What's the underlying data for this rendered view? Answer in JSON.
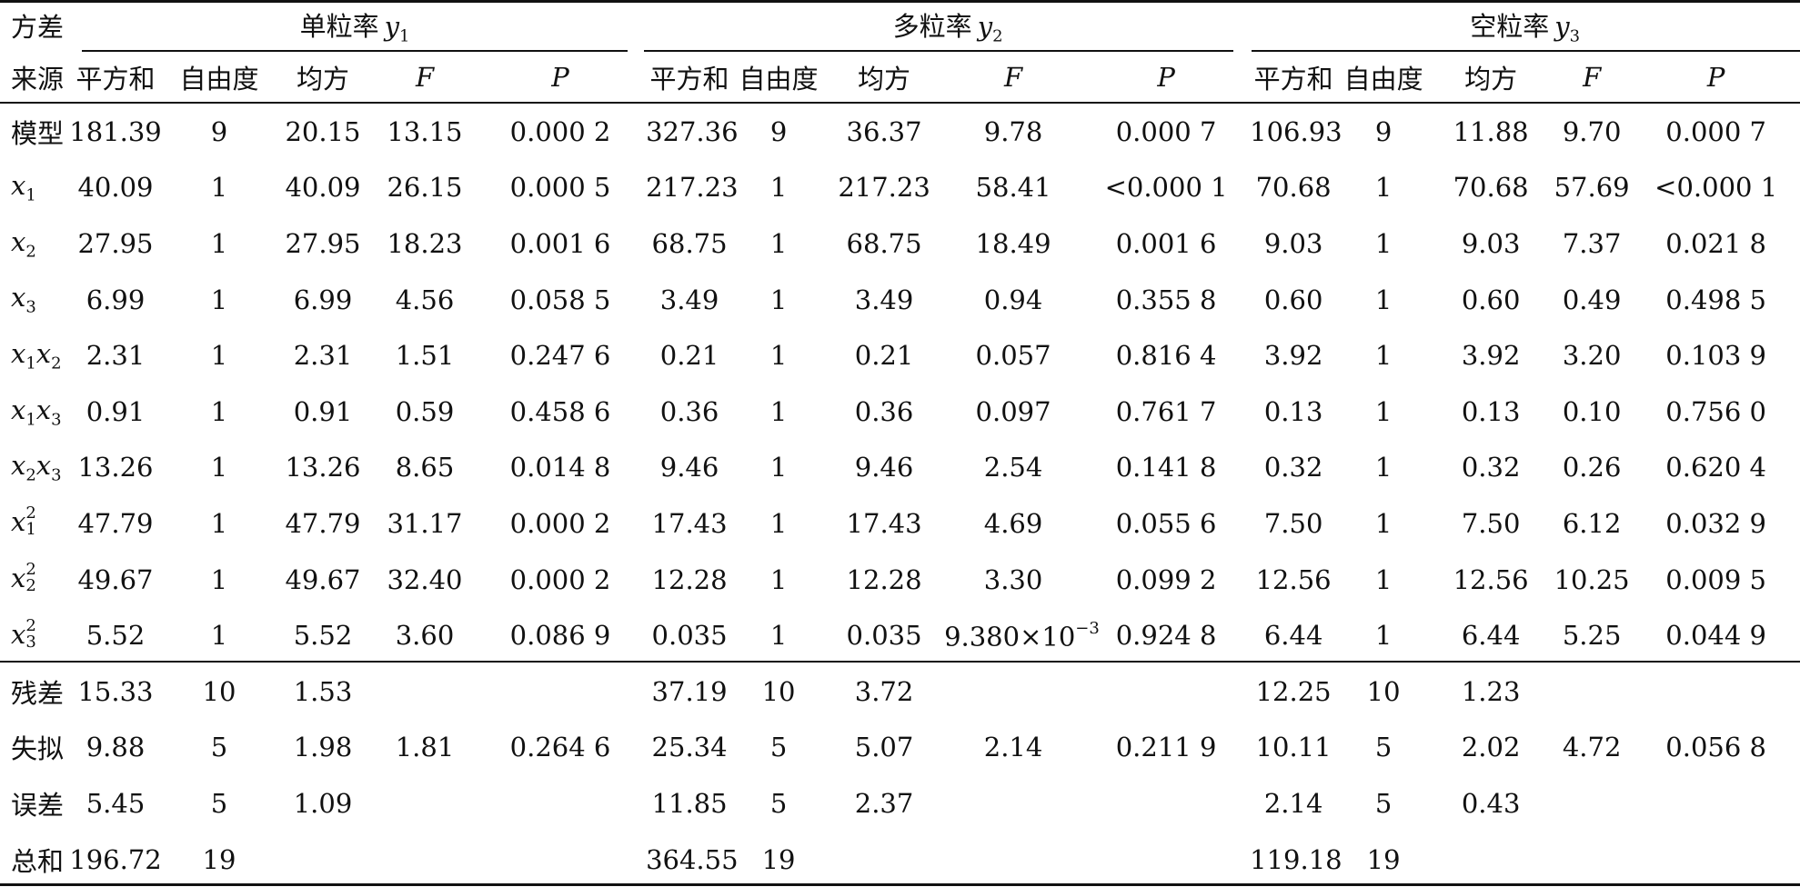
{
  "header": {
    "source_top": "方差",
    "source_bottom": "来源",
    "groups": [
      {
        "label": "单粒率",
        "var": "y",
        "sub": "1"
      },
      {
        "label": "多粒率",
        "var": "y",
        "sub": "2"
      },
      {
        "label": "空粒率",
        "var": "y",
        "sub": "3"
      }
    ],
    "columns": [
      "平方和",
      "自由度",
      "均方",
      "F",
      "P"
    ]
  },
  "rows": [
    {
      "source": {
        "text": "模型"
      },
      "cells": [
        "181.39",
        "9",
        "20.15",
        "13.15",
        "0.000 2",
        "327.36",
        "9",
        "36.37",
        "9.78",
        "0.000 7",
        "106.93",
        "9",
        "11.88",
        "9.70",
        "0.000 7"
      ]
    },
    {
      "source": {
        "var": "x",
        "sub": "1"
      },
      "cells": [
        "40.09",
        "1",
        "40.09",
        "26.15",
        "0.000 5",
        "217.23",
        "1",
        "217.23",
        "58.41",
        "<0.000 1",
        "70.68",
        "1",
        "70.68",
        "57.69",
        "<0.000 1"
      ]
    },
    {
      "source": {
        "var": "x",
        "sub": "2"
      },
      "cells": [
        "27.95",
        "1",
        "27.95",
        "18.23",
        "0.001 6",
        "68.75",
        "1",
        "68.75",
        "18.49",
        "0.001 6",
        "9.03",
        "1",
        "9.03",
        "7.37",
        "0.021 8"
      ]
    },
    {
      "source": {
        "var": "x",
        "sub": "3"
      },
      "cells": [
        "6.99",
        "1",
        "6.99",
        "4.56",
        "0.058 5",
        "3.49",
        "1",
        "3.49",
        "0.94",
        "0.355 8",
        "0.60",
        "1",
        "0.60",
        "0.49",
        "0.498 5"
      ]
    },
    {
      "source": {
        "var": "x",
        "sub": "1",
        "var2": "x",
        "sub2": "2"
      },
      "cells": [
        "2.31",
        "1",
        "2.31",
        "1.51",
        "0.247 6",
        "0.21",
        "1",
        "0.21",
        "0.057",
        "0.816 4",
        "3.92",
        "1",
        "3.92",
        "3.20",
        "0.103 9"
      ]
    },
    {
      "source": {
        "var": "x",
        "sub": "1",
        "var2": "x",
        "sub2": "3"
      },
      "cells": [
        "0.91",
        "1",
        "0.91",
        "0.59",
        "0.458 6",
        "0.36",
        "1",
        "0.36",
        "0.097",
        "0.761 7",
        "0.13",
        "1",
        "0.13",
        "0.10",
        "0.756 0"
      ]
    },
    {
      "source": {
        "var": "x",
        "sub": "2",
        "var2": "x",
        "sub2": "3"
      },
      "cells": [
        "13.26",
        "1",
        "13.26",
        "8.65",
        "0.014 8",
        "9.46",
        "1",
        "9.46",
        "2.54",
        "0.141 8",
        "0.32",
        "1",
        "0.32",
        "0.26",
        "0.620 4"
      ]
    },
    {
      "source": {
        "var": "x",
        "sub": "1",
        "sup": "2"
      },
      "cells": [
        "47.79",
        "1",
        "47.79",
        "31.17",
        "0.000 2",
        "17.43",
        "1",
        "17.43",
        "4.69",
        "0.055 6",
        "7.50",
        "1",
        "7.50",
        "6.12",
        "0.032 9"
      ]
    },
    {
      "source": {
        "var": "x",
        "sub": "2",
        "sup": "2"
      },
      "cells": [
        "49.67",
        "1",
        "49.67",
        "32.40",
        "0.000 2",
        "12.28",
        "1",
        "12.28",
        "3.30",
        "0.099 2",
        "12.56",
        "1",
        "12.56",
        "10.25",
        "0.009 5"
      ]
    },
    {
      "source": {
        "var": "x",
        "sub": "3",
        "sup": "2"
      },
      "cells": [
        "5.52",
        "1",
        "5.52",
        "3.60",
        "0.086 9",
        "0.035",
        "1",
        "0.035",
        {
          "base": "9.380×10",
          "exp": "−3"
        },
        "0.924 8",
        "6.44",
        "1",
        "6.44",
        "5.25",
        "0.044 9"
      ]
    },
    {
      "source": {
        "text": "残差"
      },
      "cells": [
        "15.33",
        "10",
        "1.53",
        "",
        "",
        "37.19",
        "10",
        "3.72",
        "",
        "",
        "12.25",
        "10",
        "1.23",
        "",
        ""
      ]
    },
    {
      "source": {
        "text": "失拟"
      },
      "cells": [
        "9.88",
        "5",
        "1.98",
        "1.81",
        "0.264 6",
        "25.34",
        "5",
        "5.07",
        "2.14",
        "0.211 9",
        "10.11",
        "5",
        "2.02",
        "4.72",
        "0.056 8"
      ]
    },
    {
      "source": {
        "text": "误差"
      },
      "cells": [
        "5.45",
        "5",
        "1.09",
        "",
        "",
        "11.85",
        "5",
        "2.37",
        "",
        "",
        "2.14",
        "5",
        "0.43",
        "",
        ""
      ]
    },
    {
      "source": {
        "text": "总和"
      },
      "cells": [
        "196.72",
        "19",
        "",
        "",
        "",
        "364.55",
        "19",
        "",
        "",
        "",
        "119.18",
        "19",
        "",
        "",
        ""
      ]
    }
  ]
}
